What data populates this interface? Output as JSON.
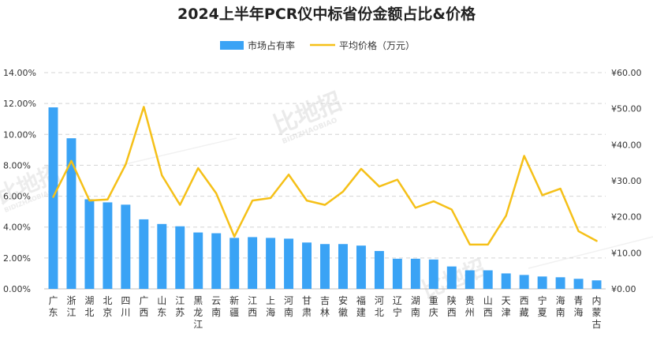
{
  "chart_data": {
    "type": "bar",
    "title": "2024上半年PCR仪中标省份金额占比&价格",
    "series": [
      {
        "name": "市场占有率",
        "type": "bar",
        "axis": "left",
        "color": "#3aa3f5",
        "values": [
          11.75,
          9.75,
          5.8,
          5.6,
          5.45,
          4.5,
          4.2,
          4.05,
          3.65,
          3.6,
          3.3,
          3.35,
          3.3,
          3.25,
          3.0,
          2.9,
          2.9,
          2.8,
          2.45,
          1.95,
          1.95,
          1.9,
          1.45,
          1.2,
          1.2,
          1.0,
          0.9,
          0.8,
          0.75,
          0.65,
          0.55
        ]
      },
      {
        "name": "平均价格（万元）",
        "type": "line",
        "axis": "right",
        "color": "#f5c018",
        "values": [
          25.5,
          35.5,
          24.5,
          24.8,
          34.5,
          50.5,
          31.5,
          23.3,
          33.5,
          26.5,
          14.5,
          24.5,
          25.2,
          31.7,
          24.5,
          23.3,
          27.0,
          33.3,
          28.4,
          30.3,
          22.5,
          24.3,
          22.0,
          12.3,
          12.3,
          20.3,
          36.9,
          26.0,
          27.8,
          16.0,
          13.3
        ]
      }
    ],
    "categories": [
      "广东",
      "浙江",
      "湖北",
      "北京",
      "四川",
      "广西",
      "山东",
      "江苏",
      "黑龙江",
      "云南",
      "新疆",
      "江西",
      "上海",
      "河南",
      "甘肃",
      "吉林",
      "安徽",
      "福建",
      "河北",
      "辽宁",
      "湖南",
      "重庆",
      "陕西",
      "贵州",
      "山西",
      "天津",
      "西藏",
      "宁夏",
      "海南",
      "青海",
      "内蒙古"
    ],
    "y_left": {
      "min": 0,
      "max": 14,
      "step": 2,
      "tick_labels": [
        "0.00%",
        "2.00%",
        "4.00%",
        "6.00%",
        "8.00%",
        "10.00%",
        "12.00%",
        "14.00%"
      ]
    },
    "y_right": {
      "min": 0,
      "max": 60,
      "step": 10,
      "tick_labels": [
        "¥0.00",
        "¥10.00",
        "¥20.00",
        "¥30.00",
        "¥40.00",
        "¥50.00",
        "¥60.00"
      ]
    },
    "legend_position": "top-center",
    "grid": "dashed-horizontal"
  },
  "watermark": {
    "brand": "比地招",
    "sub": "BIDIZHAOBIAO"
  }
}
